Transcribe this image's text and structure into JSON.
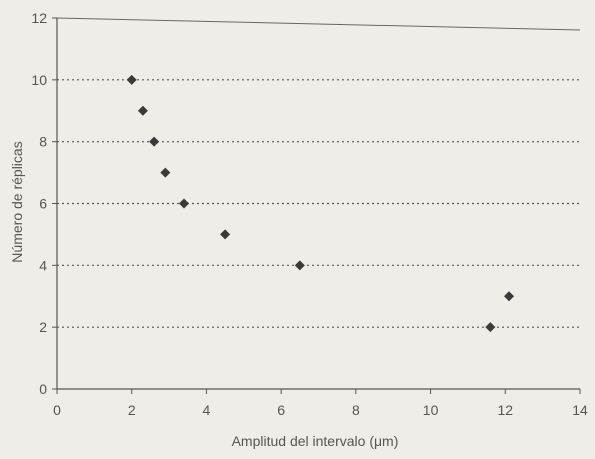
{
  "chart_data": {
    "type": "scatter",
    "title": "",
    "xlabel": "Amplitud del intervalo (μm)",
    "ylabel": "Número de réplicas",
    "xlim": [
      0,
      14
    ],
    "ylim": [
      0,
      12
    ],
    "xticks": [
      "0",
      "2",
      "4",
      "6",
      "8",
      "10",
      "12",
      "14"
    ],
    "yticks": [
      "0",
      "2",
      "4",
      "6",
      "8",
      "10",
      "12"
    ],
    "grid": "horizontal dotted",
    "marker": "diamond",
    "marker_color": "#3a3a3a",
    "series": [
      {
        "points": [
          {
            "x": 2.0,
            "y": 10
          },
          {
            "x": 2.3,
            "y": 9
          },
          {
            "x": 2.6,
            "y": 8
          },
          {
            "x": 2.9,
            "y": 7
          },
          {
            "x": 3.4,
            "y": 6
          },
          {
            "x": 4.5,
            "y": 5
          },
          {
            "x": 6.5,
            "y": 4
          },
          {
            "x": 11.6,
            "y": 2
          },
          {
            "x": 12.1,
            "y": 3
          }
        ]
      }
    ]
  }
}
